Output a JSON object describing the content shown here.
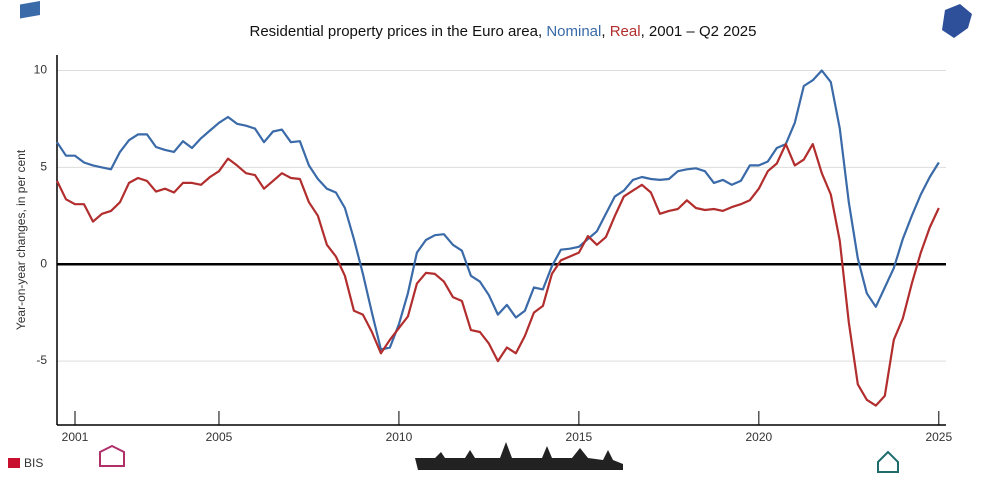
{
  "chart_data": {
    "type": "line",
    "title_prefix": "Residential property prices in the Euro area, ",
    "title_separator": ", ",
    "title_suffix": ", 2001 – Q2 2025",
    "y_label": "Year-on-year changes, in per cent",
    "logo_text": "BIS",
    "x": [
      2000.5,
      2000.75,
      2001,
      2001.25,
      2001.5,
      2001.75,
      2002,
      2002.25,
      2002.5,
      2002.75,
      2003,
      2003.25,
      2003.5,
      2003.75,
      2004,
      2004.25,
      2004.5,
      2004.75,
      2005,
      2005.25,
      2005.5,
      2005.75,
      2006,
      2006.25,
      2006.5,
      2006.75,
      2007,
      2007.25,
      2007.5,
      2007.75,
      2008,
      2008.25,
      2008.5,
      2008.75,
      2009,
      2009.25,
      2009.5,
      2009.75,
      2010,
      2010.25,
      2010.5,
      2010.75,
      2011,
      2011.25,
      2011.5,
      2011.75,
      2012,
      2012.25,
      2012.5,
      2012.75,
      2013,
      2013.25,
      2013.5,
      2013.75,
      2014,
      2014.25,
      2014.5,
      2014.75,
      2015,
      2015.25,
      2015.5,
      2015.75,
      2016,
      2016.25,
      2016.5,
      2016.75,
      2017,
      2017.25,
      2017.5,
      2017.75,
      2018,
      2018.25,
      2018.5,
      2018.75,
      2019,
      2019.25,
      2019.5,
      2019.75,
      2020,
      2020.25,
      2020.5,
      2020.75,
      2021,
      2021.25,
      2021.5,
      2021.75,
      2022,
      2022.25,
      2022.5,
      2022.75,
      2023,
      2023.25,
      2023.5,
      2023.75,
      2024,
      2024.25,
      2024.5,
      2024.75,
      2025
    ],
    "series": [
      {
        "name": "Nominal",
        "color": "#3a6aa8",
        "values": [
          6.3,
          5.6,
          5.6,
          5.25,
          5.1,
          5.0,
          4.9,
          5.8,
          6.4,
          6.7,
          6.7,
          6.05,
          5.9,
          5.8,
          6.35,
          6.0,
          6.5,
          6.9,
          7.3,
          7.6,
          7.25,
          7.15,
          7.0,
          6.3,
          6.85,
          6.95,
          6.3,
          6.35,
          5.1,
          4.4,
          3.9,
          3.7,
          2.9,
          1.3,
          -0.5,
          -2.5,
          -4.4,
          -4.3,
          -3.1,
          -1.5,
          0.6,
          1.25,
          1.5,
          1.55,
          1.0,
          0.7,
          -0.6,
          -0.9,
          -1.6,
          -2.6,
          -2.1,
          -2.75,
          -2.4,
          -1.2,
          -1.3,
          -0.1,
          0.75,
          0.8,
          0.9,
          1.3,
          1.7,
          2.6,
          3.5,
          3.8,
          4.35,
          4.5,
          4.4,
          4.35,
          4.4,
          4.8,
          4.9,
          4.95,
          4.8,
          4.2,
          4.35,
          4.1,
          4.3,
          5.1,
          5.1,
          5.3,
          6.0,
          6.2,
          7.3,
          9.2,
          9.5,
          10.0,
          9.4,
          7.0,
          3.2,
          0.3,
          -1.5,
          -2.2,
          -1.2,
          -0.2,
          1.3,
          2.5,
          3.6,
          4.5,
          5.25
        ]
      },
      {
        "name": "Real",
        "color": "#b22e2e",
        "values": [
          4.3,
          3.35,
          3.1,
          3.1,
          2.2,
          2.6,
          2.75,
          3.2,
          4.2,
          4.45,
          4.3,
          3.75,
          3.9,
          3.7,
          4.2,
          4.2,
          4.1,
          4.5,
          4.8,
          5.45,
          5.1,
          4.7,
          4.6,
          3.9,
          4.3,
          4.7,
          4.45,
          4.4,
          3.2,
          2.5,
          1.0,
          0.4,
          -0.6,
          -2.4,
          -2.6,
          -3.5,
          -4.6,
          -3.9,
          -3.3,
          -2.7,
          -1.0,
          -0.45,
          -0.5,
          -0.9,
          -1.7,
          -1.9,
          -3.4,
          -3.5,
          -4.1,
          -5.0,
          -4.3,
          -4.6,
          -3.7,
          -2.5,
          -2.15,
          -0.5,
          0.2,
          0.4,
          0.6,
          1.45,
          1.0,
          1.4,
          2.5,
          3.5,
          3.8,
          4.1,
          3.7,
          2.6,
          2.75,
          2.85,
          3.3,
          2.9,
          2.8,
          2.85,
          2.75,
          2.95,
          3.1,
          3.3,
          3.9,
          4.8,
          5.2,
          6.2,
          5.1,
          5.4,
          6.2,
          4.7,
          3.6,
          1.2,
          -3.0,
          -6.2,
          -7.0,
          -7.3,
          -6.8,
          -3.9,
          -2.8,
          -1.0,
          0.6,
          1.9,
          2.9
        ]
      }
    ],
    "xlim": [
      2000.5,
      2025.2
    ],
    "xticks": [
      2001,
      2005,
      2010,
      2015,
      2020,
      2025
    ],
    "ylim": [
      -8.3,
      10.8
    ],
    "yticks": [
      -5,
      0,
      5,
      10
    ],
    "grid": true
  }
}
